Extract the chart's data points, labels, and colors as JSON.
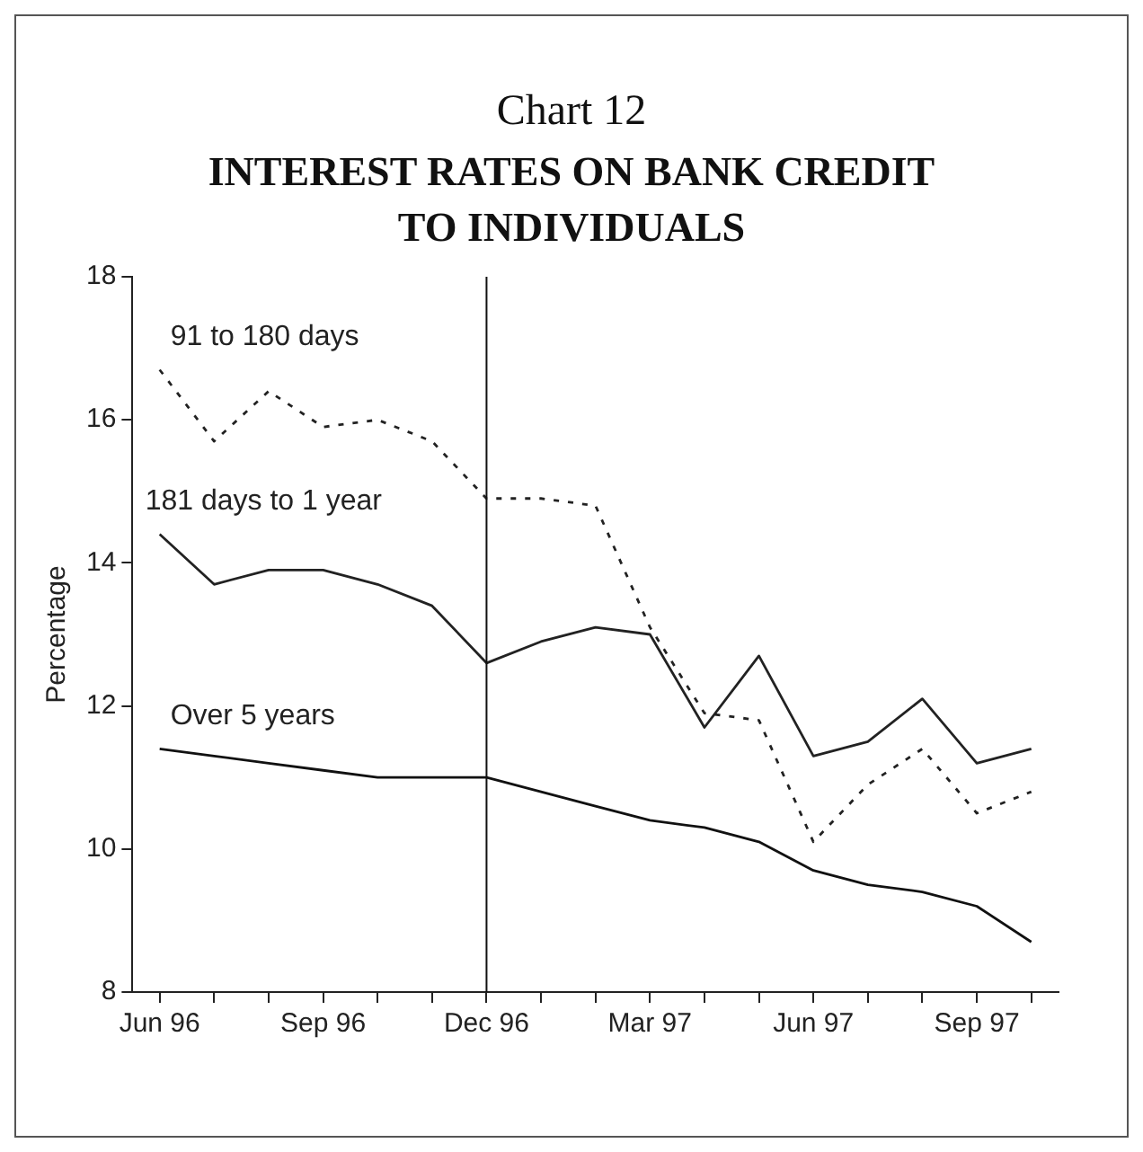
{
  "chart_data": {
    "type": "line",
    "title": "Chart 12",
    "subtitle": "INTEREST RATES ON BANK CREDIT TO INDIVIDUALS",
    "ylabel": "Percentage",
    "categories": [
      "Jun 96",
      null,
      null,
      "Sep 96",
      null,
      null,
      "Dec 96",
      null,
      null,
      "Mar 97",
      null,
      null,
      "Jun 97",
      null,
      null,
      "Sep 97",
      null
    ],
    "series": [
      {
        "name": "91 to 180 days",
        "color": "#222222",
        "line_style": "dashed",
        "values": [
          16.7,
          15.7,
          16.4,
          15.9,
          16.0,
          15.7,
          14.9,
          14.9,
          14.8,
          13.1,
          11.9,
          11.8,
          10.1,
          10.9,
          11.4,
          10.5,
          10.8
        ]
      },
      {
        "name": "181 days to 1 year",
        "color": "#222222",
        "line_style": "solid",
        "values": [
          14.4,
          13.7,
          13.9,
          13.9,
          13.7,
          13.4,
          12.6,
          12.9,
          13.1,
          13.0,
          11.7,
          12.7,
          11.3,
          11.5,
          12.1,
          11.2,
          11.4
        ]
      },
      {
        "name": "Over 5 years",
        "color": "#111111",
        "line_style": "solid",
        "values": [
          11.4,
          11.3,
          11.2,
          11.1,
          11.0,
          11.0,
          11.0,
          10.8,
          10.6,
          10.4,
          10.3,
          10.1,
          9.7,
          9.5,
          9.4,
          9.2,
          8.7
        ]
      }
    ],
    "ylim": [
      8,
      18
    ],
    "yticks": [
      8,
      10,
      12,
      14,
      16,
      18
    ],
    "grid": false,
    "legend": false,
    "marker": "none",
    "ref_lines": [
      {
        "axis": "x",
        "value": "Dec 96",
        "color": "#111111"
      }
    ]
  }
}
